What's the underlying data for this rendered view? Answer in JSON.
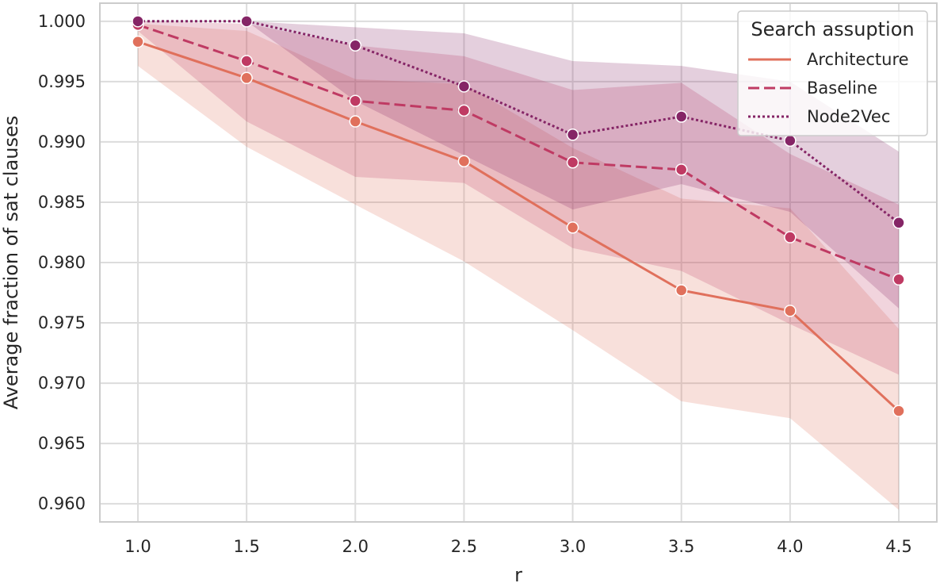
{
  "chart_data": {
    "type": "line",
    "xlabel": "r",
    "ylabel": "Average fraction of sat clauses",
    "x": [
      1.0,
      1.5,
      2.0,
      2.5,
      3.0,
      3.5,
      4.0,
      4.5
    ],
    "x_tick_labels": [
      "1.0",
      "1.5",
      "2.0",
      "2.5",
      "3.0",
      "3.5",
      "4.0",
      "4.5"
    ],
    "xlim": [
      0.825,
      4.675
    ],
    "ylim": [
      0.9585,
      1.0015
    ],
    "y_ticks": [
      0.96,
      0.965,
      0.97,
      0.975,
      0.98,
      0.985,
      0.99,
      0.995,
      1.0
    ],
    "y_tick_labels": [
      "0.960",
      "0.965",
      "0.970",
      "0.975",
      "0.980",
      "0.985",
      "0.990",
      "0.995",
      "1.000"
    ],
    "grid": true,
    "legend": {
      "title": "Search assuption",
      "position": "top-right"
    },
    "series": [
      {
        "name": "Architecture",
        "color": "#e0705c",
        "dash": "solid",
        "values": [
          0.9983,
          0.9953,
          0.9917,
          0.9884,
          0.9829,
          0.9777,
          0.976,
          0.9677
        ],
        "ci_low": [
          0.9963,
          0.9896,
          0.9848,
          0.9801,
          0.9744,
          0.9685,
          0.9671,
          0.9595
        ],
        "ci_high": [
          0.9998,
          0.9992,
          0.9952,
          0.9948,
          0.9895,
          0.9853,
          0.9845,
          0.9745
        ]
      },
      {
        "name": "Baseline",
        "color": "#bf3a63",
        "dash": "dashed",
        "values": [
          0.9997,
          0.9967,
          0.9934,
          0.9926,
          0.9883,
          0.9877,
          0.9821,
          0.9786
        ],
        "ci_low": [
          0.9992,
          0.9917,
          0.9871,
          0.9866,
          0.9812,
          0.9793,
          0.9749,
          0.9707
        ],
        "ci_high": [
          1.0,
          0.9998,
          0.998,
          0.9971,
          0.9943,
          0.9949,
          0.989,
          0.9848
        ]
      },
      {
        "name": "Node2Vec",
        "color": "#852566",
        "dash": "dotted",
        "values": [
          1.0,
          1.0,
          0.998,
          0.9946,
          0.9906,
          0.9921,
          0.9901,
          0.9833
        ],
        "ci_low": [
          1.0,
          1.0,
          0.9934,
          0.9889,
          0.9844,
          0.9865,
          0.9842,
          0.9762
        ],
        "ci_high": [
          1.0,
          1.0,
          0.9995,
          0.999,
          0.9967,
          0.9963,
          0.995,
          0.9892
        ]
      }
    ]
  }
}
